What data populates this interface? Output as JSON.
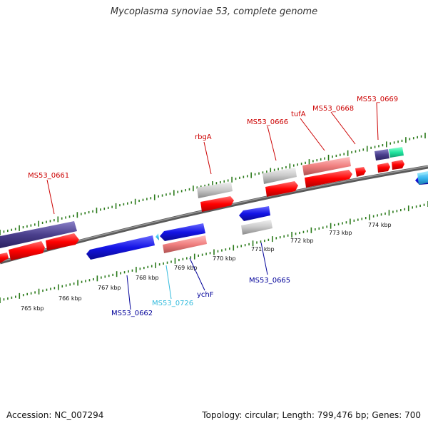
{
  "title": "Mycoplasma synoviae 53, complete genome",
  "footer": {
    "accession": "Accession: NC_007294",
    "stats": "Topology: circular; Length: 799,476 bp; Genes: 700"
  },
  "colors": {
    "backbone": "#808080",
    "ticks": "#2a7a1a",
    "cds": "#ff0000",
    "gene_pink": "#f08080",
    "gene_grey": "#c8c8c8",
    "gene_navy": "#4a3f8c",
    "gene_blue": "#1414e6",
    "gene_cyan": "#3cc8f0",
    "gene_mint": "#20e6a0",
    "label_red": "#cc0000",
    "label_blue": "#000099",
    "label_cyan": "#33bbdd"
  },
  "kbp_labels": [
    "765 kbp",
    "766 kbp",
    "767 kbp",
    "768 kbp",
    "769 kbp",
    "770 kbp",
    "771 kbp",
    "772 kbp",
    "773 kbp",
    "774 kbp"
  ],
  "gene_labels": {
    "ms53_0661": "MS53_0661",
    "rbga": "rbgA",
    "ms53_0666": "MS53_0666",
    "tufa": "tufA",
    "ms53_0668": "MS53_0668",
    "ms53_0669": "MS53_0669",
    "ms53_0662": "MS53_0662",
    "ms53_0726": "MS53_0726",
    "ychf": "ychF",
    "ms53_0665": "MS53_0665"
  }
}
